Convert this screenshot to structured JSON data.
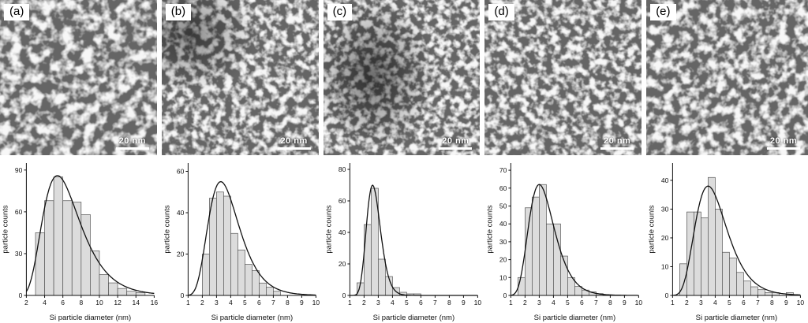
{
  "figure": {
    "panels": [
      {
        "label": "(a)",
        "scale_bar": "20 nm"
      },
      {
        "label": "(b)",
        "scale_bar": "20 nm"
      },
      {
        "label": "(c)",
        "scale_bar": "20 nm"
      },
      {
        "label": "(d)",
        "scale_bar": "20 nm"
      },
      {
        "label": "(e)",
        "scale_bar": "20 nm"
      }
    ]
  },
  "colors": {
    "bar_fill": "#dcdcdc",
    "bar_stroke": "#555555",
    "curve": "#111111",
    "axis": "#111111",
    "micrograph_background": "#1c1c1c",
    "scale_bar": "#ffffff"
  },
  "chart_data": [
    {
      "type": "bar",
      "title": "",
      "xlabel": "Si particle diameter (nm)",
      "ylabel": "particle counts",
      "xlim": [
        2,
        16
      ],
      "ylim": [
        0,
        95
      ],
      "xticks": [
        2,
        4,
        6,
        8,
        10,
        12,
        14,
        16
      ],
      "yticks": [
        0,
        30,
        60,
        90
      ],
      "bin_start": 3,
      "bin_width": 1,
      "counts": [
        45,
        68,
        85,
        68,
        67,
        58,
        32,
        15,
        9,
        5,
        3,
        2
      ],
      "fit": {
        "type": "lognormal",
        "amplitude": 86,
        "mode": 5.4,
        "sigma": 0.38
      },
      "legend": null,
      "grid": false
    },
    {
      "type": "bar",
      "title": "",
      "xlabel": "Si particle diameter (nm)",
      "ylabel": "particle counts",
      "xlim": [
        1,
        10
      ],
      "ylim": [
        0,
        64
      ],
      "xticks": [
        1,
        2,
        3,
        4,
        5,
        6,
        7,
        8,
        9,
        10
      ],
      "yticks": [
        0,
        20,
        40,
        60
      ],
      "bin_start": 2,
      "bin_width": 0.5,
      "counts": [
        20,
        47,
        50,
        48,
        30,
        22,
        15,
        12,
        6,
        4,
        2
      ],
      "fit": {
        "type": "lognormal",
        "amplitude": 55,
        "mode": 3.3,
        "sigma": 0.33
      },
      "legend": null,
      "grid": false
    },
    {
      "type": "bar",
      "title": "",
      "xlabel": "Si particle diameter (nm)",
      "ylabel": "particle counts",
      "xlim": [
        1,
        10
      ],
      "ylim": [
        0,
        84
      ],
      "xticks": [
        1,
        2,
        3,
        4,
        5,
        6,
        7,
        8,
        9,
        10
      ],
      "yticks": [
        0,
        20,
        40,
        60,
        80
      ],
      "bin_start": 1.5,
      "bin_width": 0.5,
      "counts": [
        8,
        45,
        68,
        23,
        12,
        5,
        2,
        1,
        1
      ],
      "fit": {
        "type": "lognormal",
        "amplitude": 70,
        "mode": 2.6,
        "sigma": 0.19
      },
      "legend": null,
      "grid": false
    },
    {
      "type": "bar",
      "title": "",
      "xlabel": "Si particle diameter (nm)",
      "ylabel": "particle counts",
      "xlim": [
        1,
        10
      ],
      "ylim": [
        0,
        74
      ],
      "xticks": [
        1,
        2,
        3,
        4,
        5,
        6,
        7,
        8,
        9,
        10
      ],
      "yticks": [
        0,
        10,
        20,
        30,
        40,
        50,
        60,
        70
      ],
      "bin_start": 1.5,
      "bin_width": 0.5,
      "counts": [
        10,
        49,
        55,
        62,
        40,
        40,
        22,
        10,
        5,
        3,
        2,
        1
      ],
      "fit": {
        "type": "lognormal",
        "amplitude": 62,
        "mode": 3.0,
        "sigma": 0.3
      },
      "legend": null,
      "grid": false
    },
    {
      "type": "bar",
      "title": "",
      "xlabel": "Si particle diameter (nm)",
      "ylabel": "particle counts",
      "xlim": [
        1,
        10
      ],
      "ylim": [
        0,
        46
      ],
      "xticks": [
        1,
        2,
        3,
        4,
        5,
        6,
        7,
        8,
        9,
        10
      ],
      "yticks": [
        0,
        10,
        20,
        30,
        40
      ],
      "bin_start": 1.5,
      "bin_width": 0.5,
      "counts": [
        11,
        29,
        29,
        27,
        41,
        30,
        15,
        13,
        8,
        5,
        3,
        2,
        1,
        1,
        0,
        1
      ],
      "fit": {
        "type": "lognormal",
        "amplitude": 38,
        "mode": 3.5,
        "sigma": 0.32
      },
      "legend": null,
      "grid": false
    }
  ]
}
